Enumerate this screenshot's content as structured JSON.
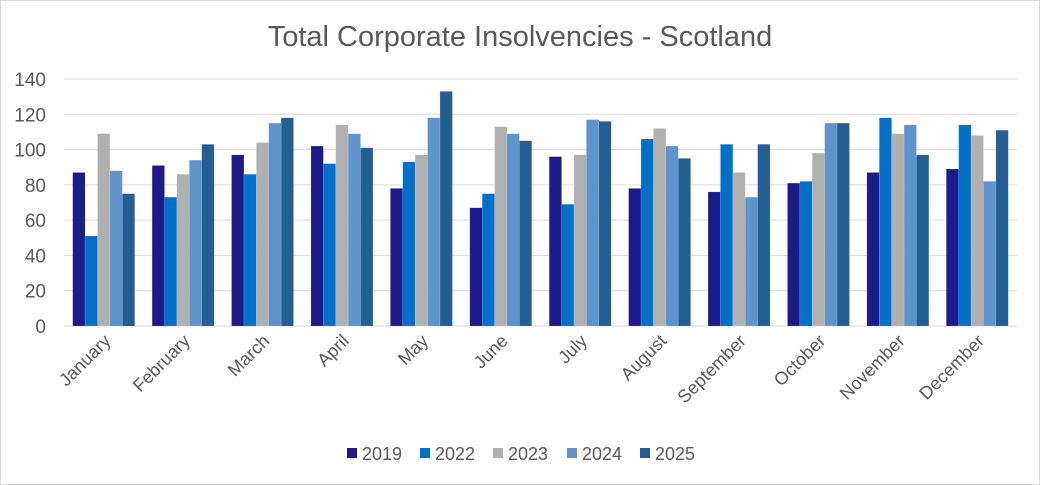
{
  "chart_data": {
    "type": "bar",
    "title": "Total Corporate Insolvencies - Scotland",
    "xlabel": "",
    "ylabel": "",
    "ylim": [
      0,
      140
    ],
    "yticks": [
      0,
      20,
      40,
      60,
      80,
      100,
      120,
      140
    ],
    "grid": true,
    "legend": "bottom",
    "categories": [
      "January",
      "February",
      "March",
      "April",
      "May",
      "June",
      "July",
      "August",
      "September",
      "October",
      "November",
      "December"
    ],
    "series": [
      {
        "name": "2019",
        "color": "#1d1a8a",
        "values": [
          87,
          91,
          97,
          102,
          78,
          67,
          96,
          78,
          76,
          81,
          87,
          89
        ]
      },
      {
        "name": "2022",
        "color": "#0070c8",
        "values": [
          51,
          73,
          86,
          92,
          93,
          75,
          69,
          106,
          103,
          82,
          118,
          114
        ]
      },
      {
        "name": "2023",
        "color": "#b0b0b0",
        "values": [
          109,
          86,
          104,
          114,
          97,
          113,
          97,
          112,
          87,
          98,
          109,
          108
        ]
      },
      {
        "name": "2024",
        "color": "#5e93cc",
        "values": [
          88,
          94,
          115,
          109,
          118,
          109,
          117,
          102,
          73,
          115,
          114,
          82
        ]
      },
      {
        "name": "2025",
        "color": "#245e92",
        "values": [
          75,
          103,
          118,
          101,
          133,
          105,
          116,
          95,
          103,
          115,
          97,
          111
        ]
      }
    ]
  }
}
